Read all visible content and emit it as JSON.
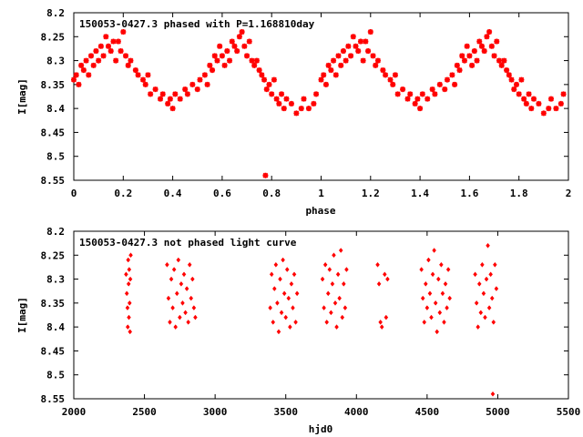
{
  "chart_data": [
    {
      "type": "scatter",
      "title": "150053-0427.3 phased with P=1.168810day",
      "xlabel": "phase",
      "ylabel": "I[mag]",
      "xlim": [
        0,
        2
      ],
      "ylim": [
        8.2,
        8.55
      ],
      "y_inverted": true,
      "xticks": [
        "0",
        "0.2",
        "0.4",
        "0.6",
        "0.8",
        "1",
        "1.2",
        "1.4",
        "1.6",
        "1.8",
        "2"
      ],
      "yticks": [
        "8.2",
        "8.25",
        "8.3",
        "8.35",
        "8.4",
        "8.45",
        "8.5",
        "8.55"
      ],
      "marker_color": "#ff0000",
      "points": [
        [
          0.0,
          8.34
        ],
        [
          0.01,
          8.33
        ],
        [
          0.02,
          8.35
        ],
        [
          0.03,
          8.31
        ],
        [
          0.04,
          8.32
        ],
        [
          0.05,
          8.3
        ],
        [
          0.06,
          8.33
        ],
        [
          0.07,
          8.29
        ],
        [
          0.08,
          8.31
        ],
        [
          0.09,
          8.28
        ],
        [
          0.1,
          8.3
        ],
        [
          0.11,
          8.27
        ],
        [
          0.12,
          8.29
        ],
        [
          0.13,
          8.25
        ],
        [
          0.14,
          8.27
        ],
        [
          0.15,
          8.28
        ],
        [
          0.16,
          8.26
        ],
        [
          0.17,
          8.3
        ],
        [
          0.18,
          8.26
        ],
        [
          0.19,
          8.28
        ],
        [
          0.2,
          8.24
        ],
        [
          0.21,
          8.29
        ],
        [
          0.22,
          8.31
        ],
        [
          0.23,
          8.3
        ],
        [
          0.25,
          8.32
        ],
        [
          0.26,
          8.33
        ],
        [
          0.28,
          8.34
        ],
        [
          0.29,
          8.35
        ],
        [
          0.3,
          8.33
        ],
        [
          0.31,
          8.37
        ],
        [
          0.33,
          8.36
        ],
        [
          0.35,
          8.38
        ],
        [
          0.36,
          8.37
        ],
        [
          0.38,
          8.39
        ],
        [
          0.39,
          8.38
        ],
        [
          0.4,
          8.4
        ],
        [
          0.41,
          8.37
        ],
        [
          0.43,
          8.38
        ],
        [
          0.45,
          8.36
        ],
        [
          0.46,
          8.37
        ],
        [
          0.48,
          8.35
        ],
        [
          0.5,
          8.36
        ],
        [
          0.51,
          8.34
        ],
        [
          0.53,
          8.33
        ],
        [
          0.54,
          8.35
        ],
        [
          0.55,
          8.31
        ],
        [
          0.56,
          8.32
        ],
        [
          0.57,
          8.29
        ],
        [
          0.58,
          8.3
        ],
        [
          0.59,
          8.27
        ],
        [
          0.6,
          8.29
        ],
        [
          0.61,
          8.31
        ],
        [
          0.62,
          8.28
        ],
        [
          0.63,
          8.3
        ],
        [
          0.64,
          8.26
        ],
        [
          0.65,
          8.27
        ],
        [
          0.66,
          8.28
        ],
        [
          0.67,
          8.25
        ],
        [
          0.68,
          8.24
        ],
        [
          0.69,
          8.27
        ],
        [
          0.7,
          8.29
        ],
        [
          0.71,
          8.26
        ],
        [
          0.72,
          8.3
        ],
        [
          0.73,
          8.31
        ],
        [
          0.74,
          8.3
        ],
        [
          0.75,
          8.32
        ],
        [
          0.76,
          8.33
        ],
        [
          0.77,
          8.34
        ],
        [
          0.78,
          8.36
        ],
        [
          0.79,
          8.35
        ],
        [
          0.8,
          8.37
        ],
        [
          0.81,
          8.34
        ],
        [
          0.82,
          8.38
        ],
        [
          0.83,
          8.39
        ],
        [
          0.84,
          8.37
        ],
        [
          0.85,
          8.4
        ],
        [
          0.86,
          8.38
        ],
        [
          0.88,
          8.39
        ],
        [
          0.9,
          8.41
        ],
        [
          0.92,
          8.4
        ],
        [
          0.93,
          8.38
        ],
        [
          0.95,
          8.4
        ],
        [
          0.97,
          8.39
        ],
        [
          0.98,
          8.37
        ],
        [
          0.775,
          8.54
        ],
        [
          1.0,
          8.34
        ],
        [
          1.01,
          8.33
        ],
        [
          1.02,
          8.35
        ],
        [
          1.03,
          8.31
        ],
        [
          1.04,
          8.32
        ],
        [
          1.05,
          8.3
        ],
        [
          1.06,
          8.33
        ],
        [
          1.07,
          8.29
        ],
        [
          1.08,
          8.31
        ],
        [
          1.09,
          8.28
        ],
        [
          1.1,
          8.3
        ],
        [
          1.11,
          8.27
        ],
        [
          1.12,
          8.29
        ],
        [
          1.13,
          8.25
        ],
        [
          1.14,
          8.27
        ],
        [
          1.15,
          8.28
        ],
        [
          1.16,
          8.26
        ],
        [
          1.17,
          8.3
        ],
        [
          1.18,
          8.26
        ],
        [
          1.19,
          8.28
        ],
        [
          1.2,
          8.24
        ],
        [
          1.21,
          8.29
        ],
        [
          1.22,
          8.31
        ],
        [
          1.23,
          8.3
        ],
        [
          1.25,
          8.32
        ],
        [
          1.26,
          8.33
        ],
        [
          1.28,
          8.34
        ],
        [
          1.29,
          8.35
        ],
        [
          1.3,
          8.33
        ],
        [
          1.31,
          8.37
        ],
        [
          1.33,
          8.36
        ],
        [
          1.35,
          8.38
        ],
        [
          1.36,
          8.37
        ],
        [
          1.38,
          8.39
        ],
        [
          1.39,
          8.38
        ],
        [
          1.4,
          8.4
        ],
        [
          1.41,
          8.37
        ],
        [
          1.43,
          8.38
        ],
        [
          1.45,
          8.36
        ],
        [
          1.46,
          8.37
        ],
        [
          1.48,
          8.35
        ],
        [
          1.5,
          8.36
        ],
        [
          1.51,
          8.34
        ],
        [
          1.53,
          8.33
        ],
        [
          1.54,
          8.35
        ],
        [
          1.55,
          8.31
        ],
        [
          1.56,
          8.32
        ],
        [
          1.57,
          8.29
        ],
        [
          1.58,
          8.3
        ],
        [
          1.59,
          8.27
        ],
        [
          1.6,
          8.29
        ],
        [
          1.61,
          8.31
        ],
        [
          1.62,
          8.28
        ],
        [
          1.63,
          8.3
        ],
        [
          1.64,
          8.26
        ],
        [
          1.65,
          8.27
        ],
        [
          1.66,
          8.28
        ],
        [
          1.67,
          8.25
        ],
        [
          1.68,
          8.24
        ],
        [
          1.69,
          8.27
        ],
        [
          1.7,
          8.29
        ],
        [
          1.71,
          8.26
        ],
        [
          1.72,
          8.3
        ],
        [
          1.73,
          8.31
        ],
        [
          1.74,
          8.3
        ],
        [
          1.75,
          8.32
        ],
        [
          1.76,
          8.33
        ],
        [
          1.77,
          8.34
        ],
        [
          1.78,
          8.36
        ],
        [
          1.79,
          8.35
        ],
        [
          1.8,
          8.37
        ],
        [
          1.81,
          8.34
        ],
        [
          1.82,
          8.38
        ],
        [
          1.83,
          8.39
        ],
        [
          1.84,
          8.37
        ],
        [
          1.85,
          8.4
        ],
        [
          1.86,
          8.38
        ],
        [
          1.88,
          8.39
        ],
        [
          1.9,
          8.41
        ],
        [
          1.92,
          8.4
        ],
        [
          1.93,
          8.38
        ],
        [
          1.95,
          8.4
        ],
        [
          1.97,
          8.39
        ],
        [
          1.98,
          8.37
        ]
      ]
    },
    {
      "type": "scatter",
      "title": "150053-0427.3 not phased light curve",
      "xlabel": "hjd0",
      "ylabel": "I[mag]",
      "xlim": [
        2000,
        5500
      ],
      "ylim": [
        8.2,
        8.55
      ],
      "y_inverted": true,
      "xticks": [
        "2000",
        "2500",
        "3000",
        "3500",
        "4000",
        "4500",
        "5000",
        "5500"
      ],
      "yticks": [
        "8.2",
        "8.25",
        "8.3",
        "8.35",
        "8.4",
        "8.45",
        "8.5",
        "8.55"
      ],
      "marker_color": "#ff0000",
      "points": [
        [
          2370,
          8.29
        ],
        [
          2375,
          8.33
        ],
        [
          2380,
          8.36
        ],
        [
          2382,
          8.4
        ],
        [
          2385,
          8.26
        ],
        [
          2388,
          8.31
        ],
        [
          2390,
          8.38
        ],
        [
          2392,
          8.28
        ],
        [
          2395,
          8.35
        ],
        [
          2398,
          8.41
        ],
        [
          2400,
          8.3
        ],
        [
          2403,
          8.25
        ],
        [
          2660,
          8.27
        ],
        [
          2670,
          8.34
        ],
        [
          2680,
          8.39
        ],
        [
          2690,
          8.3
        ],
        [
          2700,
          8.36
        ],
        [
          2710,
          8.28
        ],
        [
          2720,
          8.4
        ],
        [
          2730,
          8.33
        ],
        [
          2740,
          8.26
        ],
        [
          2750,
          8.38
        ],
        [
          2760,
          8.31
        ],
        [
          2770,
          8.35
        ],
        [
          2780,
          8.29
        ],
        [
          2790,
          8.37
        ],
        [
          2800,
          8.32
        ],
        [
          2810,
          8.39
        ],
        [
          2820,
          8.27
        ],
        [
          2830,
          8.34
        ],
        [
          2840,
          8.3
        ],
        [
          2850,
          8.36
        ],
        [
          2860,
          8.38
        ],
        [
          3390,
          8.36
        ],
        [
          3400,
          8.29
        ],
        [
          3410,
          8.39
        ],
        [
          3420,
          8.32
        ],
        [
          3430,
          8.27
        ],
        [
          3440,
          8.35
        ],
        [
          3450,
          8.41
        ],
        [
          3460,
          8.3
        ],
        [
          3470,
          8.37
        ],
        [
          3480,
          8.26
        ],
        [
          3490,
          8.33
        ],
        [
          3500,
          8.38
        ],
        [
          3510,
          8.28
        ],
        [
          3520,
          8.34
        ],
        [
          3530,
          8.4
        ],
        [
          3540,
          8.31
        ],
        [
          3550,
          8.36
        ],
        [
          3560,
          8.29
        ],
        [
          3570,
          8.39
        ],
        [
          3580,
          8.33
        ],
        [
          3760,
          8.3
        ],
        [
          3770,
          8.36
        ],
        [
          3780,
          8.27
        ],
        [
          3790,
          8.39
        ],
        [
          3800,
          8.33
        ],
        [
          3810,
          8.28
        ],
        [
          3820,
          8.37
        ],
        [
          3830,
          8.31
        ],
        [
          3840,
          8.25
        ],
        [
          3850,
          8.35
        ],
        [
          3860,
          8.4
        ],
        [
          3870,
          8.29
        ],
        [
          3880,
          8.34
        ],
        [
          3890,
          8.24
        ],
        [
          3900,
          8.38
        ],
        [
          3910,
          8.31
        ],
        [
          3920,
          8.36
        ],
        [
          3930,
          8.28
        ],
        [
          4150,
          8.27
        ],
        [
          4160,
          8.31
        ],
        [
          4170,
          8.39
        ],
        [
          4180,
          8.4
        ],
        [
          4200,
          8.29
        ],
        [
          4210,
          8.38
        ],
        [
          4220,
          8.3
        ],
        [
          4460,
          8.28
        ],
        [
          4470,
          8.34
        ],
        [
          4480,
          8.39
        ],
        [
          4490,
          8.31
        ],
        [
          4500,
          8.36
        ],
        [
          4510,
          8.26
        ],
        [
          4520,
          8.33
        ],
        [
          4530,
          8.38
        ],
        [
          4540,
          8.29
        ],
        [
          4550,
          8.24
        ],
        [
          4560,
          8.35
        ],
        [
          4570,
          8.41
        ],
        [
          4580,
          8.3
        ],
        [
          4590,
          8.37
        ],
        [
          4600,
          8.27
        ],
        [
          4610,
          8.33
        ],
        [
          4620,
          8.39
        ],
        [
          4630,
          8.31
        ],
        [
          4640,
          8.36
        ],
        [
          4650,
          8.28
        ],
        [
          4660,
          8.34
        ],
        [
          4840,
          8.29
        ],
        [
          4850,
          8.35
        ],
        [
          4860,
          8.4
        ],
        [
          4870,
          8.31
        ],
        [
          4880,
          8.37
        ],
        [
          4890,
          8.27
        ],
        [
          4900,
          8.33
        ],
        [
          4910,
          8.38
        ],
        [
          4920,
          8.3
        ],
        [
          4930,
          8.23
        ],
        [
          4940,
          8.36
        ],
        [
          4950,
          8.29
        ],
        [
          4960,
          8.34
        ],
        [
          4970,
          8.39
        ],
        [
          4980,
          8.27
        ],
        [
          4990,
          8.32
        ],
        [
          4965,
          8.54
        ]
      ]
    }
  ]
}
